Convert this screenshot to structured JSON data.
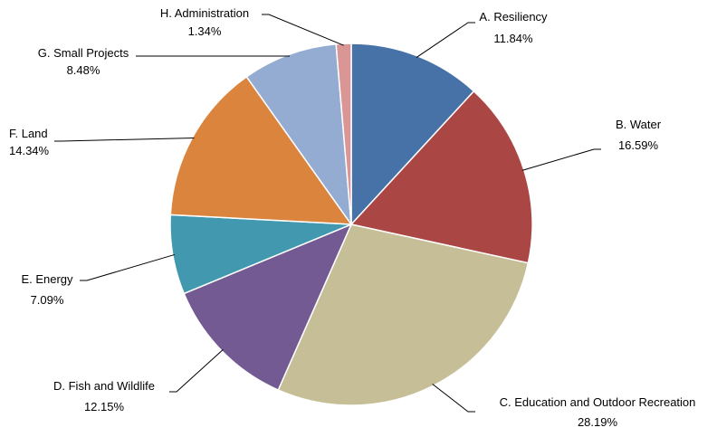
{
  "chart_data": {
    "type": "pie",
    "title": "",
    "categories": [
      "A. Resiliency",
      "B. Water",
      "C. Education and Outdoor Recreation",
      "D. Fish and Wildlife",
      "E. Energy",
      "F. Land",
      "G. Small Projects",
      "H. Administration"
    ],
    "values": [
      11.84,
      16.59,
      28.19,
      12.15,
      7.09,
      14.34,
      8.48,
      1.34
    ],
    "value_labels": [
      "11.84%",
      "16.59%",
      "28.19%",
      "12.15%",
      "7.09%",
      "14.34%",
      "8.48%",
      "1.34%"
    ],
    "colors": [
      "#4672A8",
      "#AA4644",
      "#C6BE96",
      "#735A92",
      "#4299AF",
      "#DA843E",
      "#94ABD2",
      "#D99694"
    ],
    "start": "12 o'clock",
    "direction": "clockwise",
    "legend": "none",
    "labels": "outside with leader lines"
  }
}
